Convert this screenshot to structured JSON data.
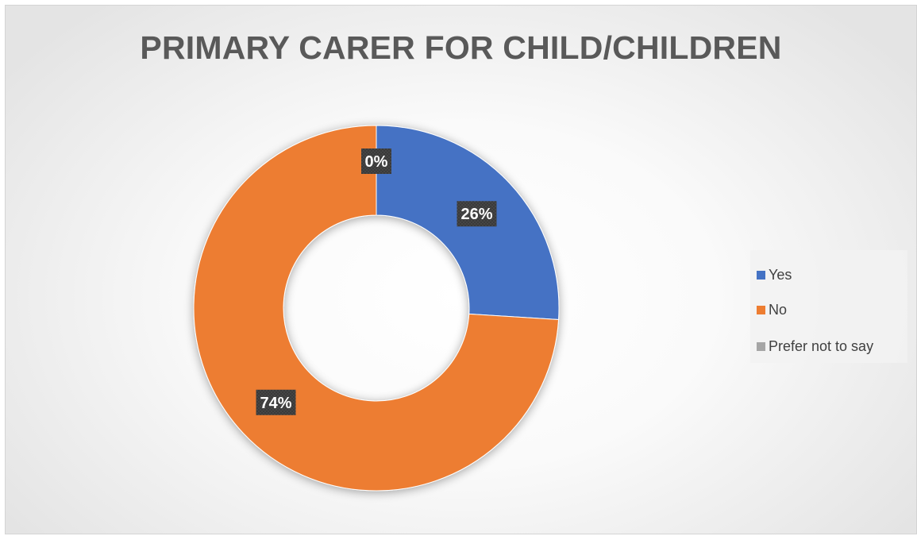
{
  "chart_data": {
    "type": "pie",
    "variant": "donut",
    "title": "PRIMARY CARER FOR CHILD/CHILDREN",
    "categories": [
      "Yes",
      "No",
      "Prefer not to say"
    ],
    "values": [
      26,
      74,
      0
    ],
    "data_labels": [
      "26%",
      "74%",
      "0%"
    ],
    "colors": [
      "#4472C4",
      "#ED7D31",
      "#A5A5A5"
    ],
    "legend_position": "right",
    "label_style": "dark boxes with white bold text"
  }
}
